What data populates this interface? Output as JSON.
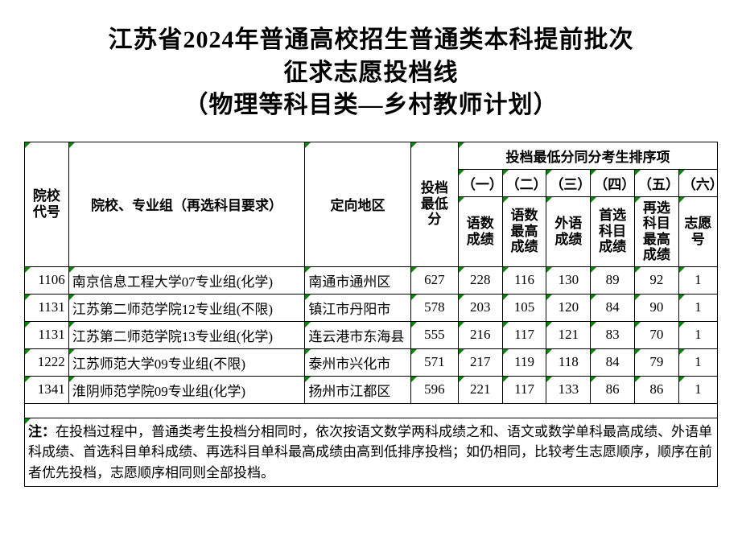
{
  "title": {
    "line1": "江苏省2024年普通高校招生普通类本科提前批次",
    "line2": "征求志愿投档线",
    "line3": "（物理等科目类—乡村教师计划）"
  },
  "table": {
    "headers": {
      "code": "院校代号",
      "name": "院校、专业组（再选科目要求）",
      "region": "定向地区",
      "score": "投档最低分",
      "rank_group": "投档最低分同分考生排序项",
      "rank_nums": [
        "（一）",
        "（二）",
        "（三）",
        "（四）",
        "（五）",
        "（六）"
      ],
      "rank_labels": [
        "语数成绩",
        "语数最高成绩",
        "外语成绩",
        "首选科目成绩",
        "再选科目最高成绩",
        "志愿号"
      ]
    },
    "rows": [
      {
        "code": "1106",
        "name": "南京信息工程大学07专业组(化学)",
        "region": "南通市通州区",
        "score": "627",
        "r": [
          "228",
          "116",
          "130",
          "89",
          "92",
          "1"
        ]
      },
      {
        "code": "1131",
        "name": "江苏第二师范学院12专业组(不限)",
        "region": "镇江市丹阳市",
        "score": "578",
        "r": [
          "203",
          "105",
          "120",
          "84",
          "90",
          "1"
        ]
      },
      {
        "code": "1131",
        "name": "江苏第二师范学院13专业组(化学)",
        "region": "连云港市东海县",
        "score": "555",
        "r": [
          "216",
          "117",
          "121",
          "83",
          "70",
          "1"
        ]
      },
      {
        "code": "1222",
        "name": "江苏师范大学09专业组(不限)",
        "region": "泰州市兴化市",
        "score": "571",
        "r": [
          "217",
          "119",
          "118",
          "84",
          "79",
          "1"
        ]
      },
      {
        "code": "1341",
        "name": "淮阴师范学院09专业组(化学)",
        "region": "扬州市江都区",
        "score": "596",
        "r": [
          "221",
          "117",
          "133",
          "86",
          "86",
          "1"
        ]
      }
    ],
    "note_label": "注：",
    "note_text": "在投档过程中，普通类考生投档分相同时，依次按语文数学两科成绩之和、语文或数学单科最高成绩、外语单科成绩、首选科目单科成绩、再选科目单科最高成绩由高到低排序投档；如仍相同，比较考生志愿顺序，顺序在前者优先投档，志愿顺序相同则全部投档。"
  },
  "style": {
    "corner_color": "#008800",
    "border_color": "#000000",
    "title_fontsize": 30,
    "cell_fontsize": 17,
    "note_fontsize": 19
  }
}
